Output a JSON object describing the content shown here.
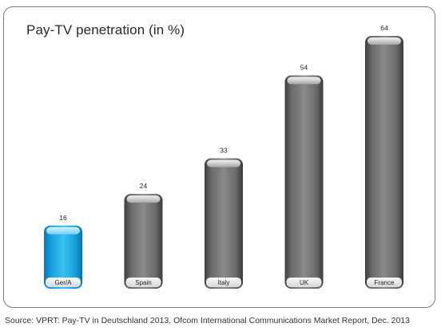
{
  "chart_data": {
    "type": "bar",
    "title": "Pay-TV penetration (in %)",
    "categories": [
      "Ger/A",
      "Spain",
      "Italy",
      "UK",
      "France"
    ],
    "values": [
      16,
      24,
      33,
      54,
      64
    ],
    "data_labels": [
      "16",
      "24",
      "33",
      "54",
      "64"
    ],
    "xlabel": "",
    "ylabel": "",
    "ylim": [
      0,
      64
    ],
    "grid": false,
    "legend": "none",
    "highlight_index": 0
  },
  "colors": {
    "highlight": "#1aa6e0",
    "bar": "#6e6e6e",
    "frame": "#7a7a7a"
  },
  "footer": {
    "source": "Source: VPRT: Pay-TV in Deutschland 2013, Ofcom International Communications Market Report, Dec. 2013"
  }
}
